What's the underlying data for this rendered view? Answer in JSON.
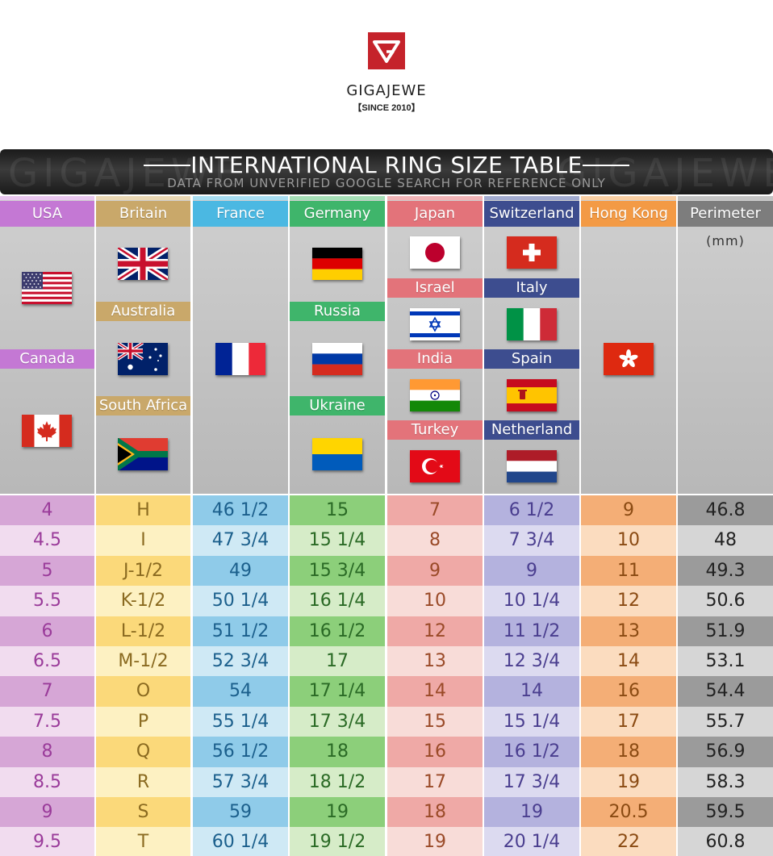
{
  "brand": {
    "name": "GIGAJEWE",
    "since": "【SINCE 2010】"
  },
  "banner": {
    "title": "INTERNATIONAL RING SIZE TABLE",
    "subtitle": "DATA FROM UNVERIFIED GOOGLE SEARCH FOR REFERENCE ONLY",
    "watermark": "GIGAJEWE"
  },
  "colors": {
    "usa": "#c478d4",
    "britain": "#c9a86a",
    "france": "#4bb8e2",
    "germany": "#3fb56b",
    "japan": "#e3737a",
    "switzerland": "#3d4d8f",
    "hongkong": "#f39a45",
    "perimeter": "#7d7d7d"
  },
  "columns": [
    {
      "key": "usa",
      "header": "USA",
      "bands": [
        "Canada"
      ],
      "flags": [
        "flag-usa",
        "flag-canada"
      ],
      "values": [
        "4",
        "4.5",
        "5",
        "5.5",
        "6",
        "6.5",
        "7",
        "7.5",
        "8",
        "8.5",
        "9",
        "9.5"
      ]
    },
    {
      "key": "britain",
      "header": "Britain",
      "bands": [
        "Australia",
        "South Africa"
      ],
      "flags": [
        "flag-uk",
        "flag-australia",
        "flag-south-africa"
      ],
      "values": [
        "H",
        "I",
        "J-1/2",
        "K-1/2",
        "L-1/2",
        "M-1/2",
        "O",
        "P",
        "Q",
        "R",
        "S",
        "T"
      ]
    },
    {
      "key": "france",
      "header": "France",
      "bands": [],
      "flags": [
        "flag-france"
      ],
      "values": [
        "46 1/2",
        "47 3/4",
        "49",
        "50 1/4",
        "51 1/2",
        "52 3/4",
        "54",
        "55 1/4",
        "56 1/2",
        "57 3/4",
        "59",
        "60 1/4"
      ]
    },
    {
      "key": "germany",
      "header": "Germany",
      "bands": [
        "Russia",
        "Ukraine"
      ],
      "flags": [
        "flag-germany",
        "flag-russia",
        "flag-ukraine"
      ],
      "values": [
        "15",
        "15 1/4",
        "15 3/4",
        "16 1/4",
        "16 1/2",
        "17",
        "17 1/4",
        "17 3/4",
        "18",
        "18 1/2",
        "19",
        "19 1/2"
      ]
    },
    {
      "key": "japan",
      "header": "Japan",
      "bands": [
        "Israel",
        "India",
        "Turkey"
      ],
      "flags": [
        "flag-japan",
        "flag-israel",
        "flag-india",
        "flag-turkey"
      ],
      "values": [
        "7",
        "8",
        "9",
        "10",
        "12",
        "13",
        "14",
        "15",
        "16",
        "17",
        "18",
        "19"
      ]
    },
    {
      "key": "switzerland",
      "header": "Switzerland",
      "bands": [
        "Italy",
        "Spain",
        "Netherland"
      ],
      "flags": [
        "flag-switzerland",
        "flag-italy",
        "flag-spain",
        "flag-netherlands"
      ],
      "values": [
        "6 1/2",
        "7 3/4",
        "9",
        "10 1/4",
        "11 1/2",
        "12 3/4",
        "14",
        "15 1/4",
        "16 1/2",
        "17 3/4",
        "19",
        "20 1/4"
      ]
    },
    {
      "key": "hongkong",
      "header": "Hong Kong",
      "bands": [],
      "flags": [
        "flag-hong-kong"
      ],
      "values": [
        "9",
        "10",
        "11",
        "12",
        "13",
        "14",
        "16",
        "17",
        "18",
        "19",
        "20.5",
        "22"
      ]
    },
    {
      "key": "perimeter",
      "header": "Perimeter",
      "unit": "(mm)",
      "bands": [],
      "flags": [],
      "values": [
        "46.8",
        "48",
        "49.3",
        "50.6",
        "51.9",
        "53.1",
        "54.4",
        "55.7",
        "56.9",
        "58.3",
        "59.5",
        "60.8"
      ]
    }
  ]
}
